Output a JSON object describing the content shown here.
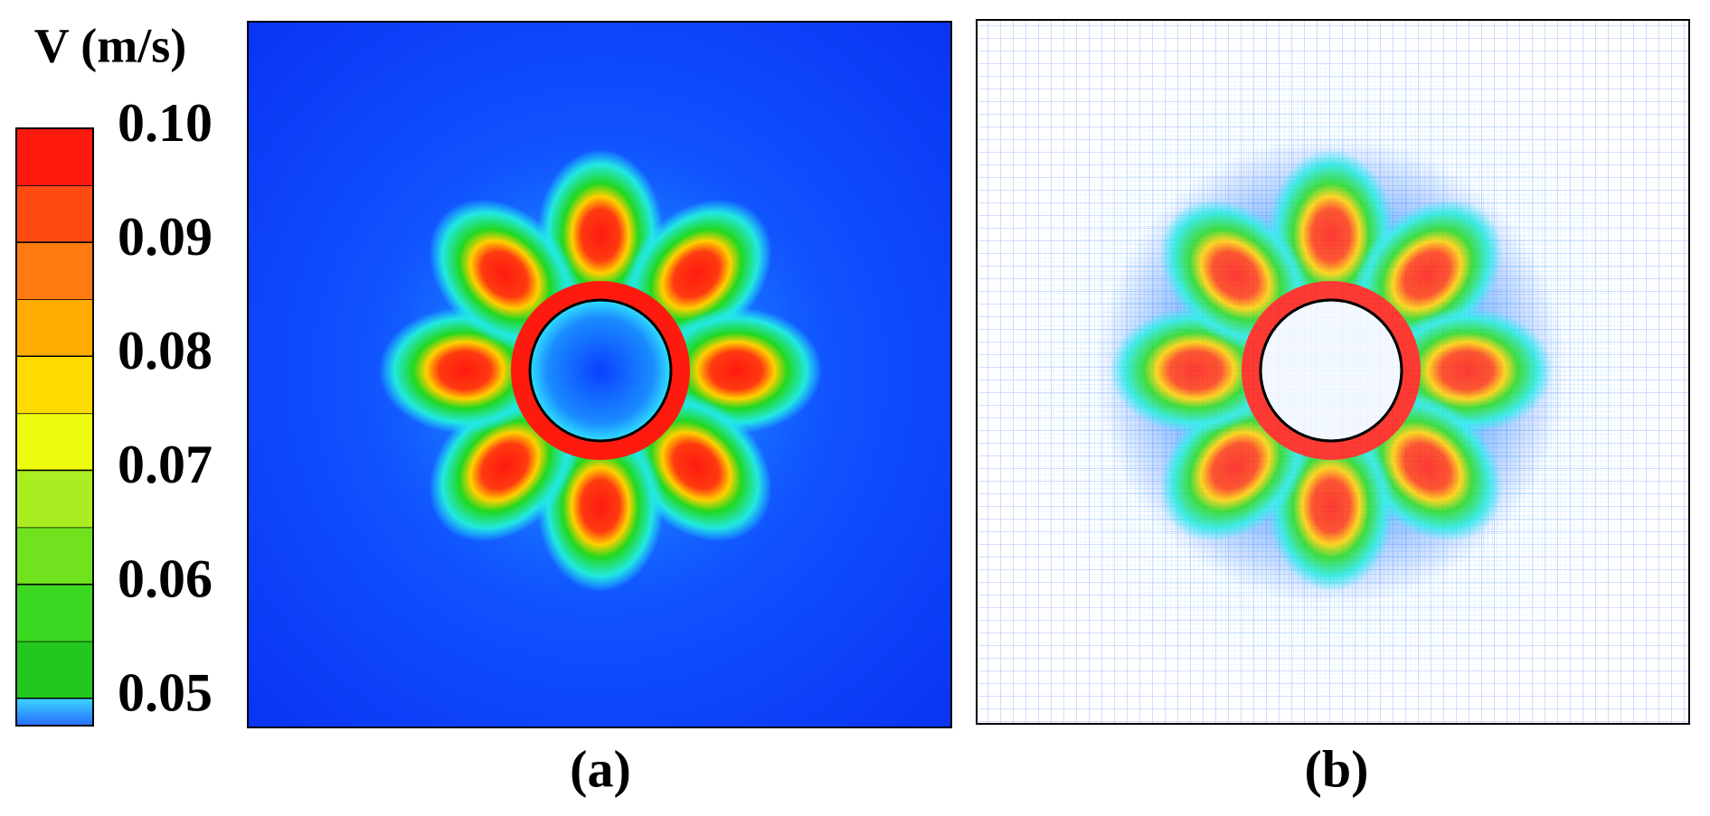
{
  "colorbar": {
    "title": "V (m/s)",
    "range": [
      0.0476,
      0.1
    ],
    "ticks": [
      {
        "value": 0.05,
        "label": "0.05"
      },
      {
        "value": 0.06,
        "label": "0.06"
      },
      {
        "value": 0.07,
        "label": "0.07"
      },
      {
        "value": 0.08,
        "label": "0.08"
      },
      {
        "value": 0.09,
        "label": "0.09"
      },
      {
        "value": 0.1,
        "label": "0.10"
      }
    ],
    "colors": [
      "#22c81e",
      "#3cd822",
      "#70e21e",
      "#aaee22",
      "#eefc10",
      "#ffdc00",
      "#ffac00",
      "#ff7a10",
      "#ff4a12",
      "#ff1a10"
    ],
    "under_colors": [
      "#3cd6ff",
      "#2a6cff"
    ]
  },
  "panels": [
    {
      "label": "(a)"
    },
    {
      "label": "(b)"
    }
  ]
}
